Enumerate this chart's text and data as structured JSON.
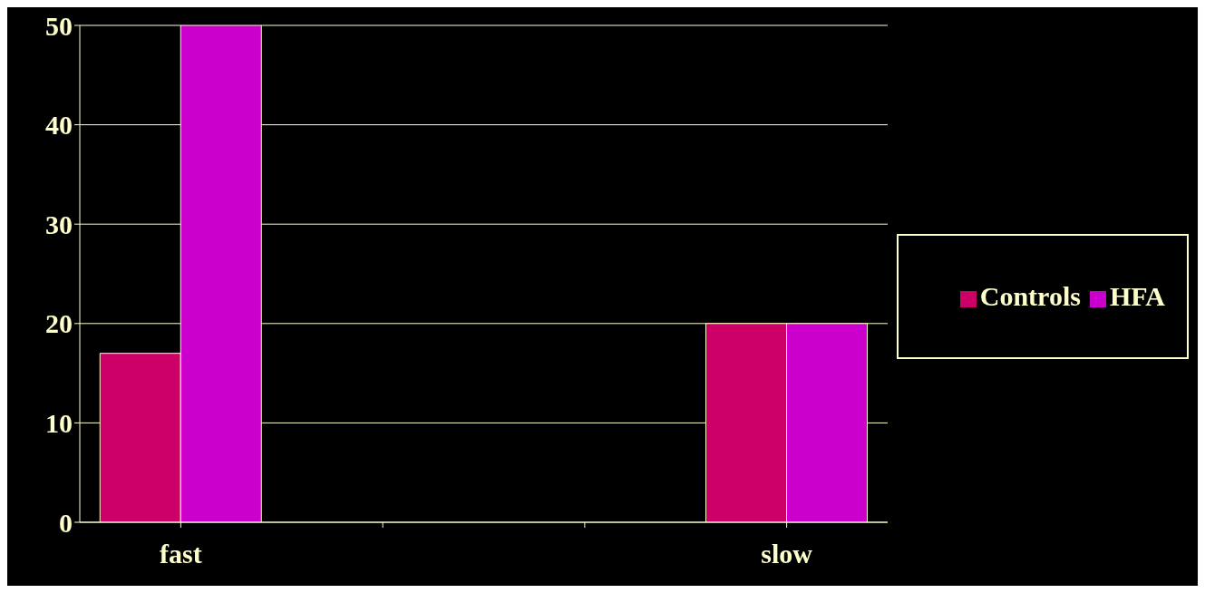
{
  "chart_data": {
    "type": "bar",
    "categories": [
      "fast",
      null,
      null,
      "slow"
    ],
    "series": [
      {
        "name": "Controls",
        "color": "#cc0066",
        "values": [
          17,
          null,
          null,
          20
        ]
      },
      {
        "name": "HFA",
        "color": "#cc00cc",
        "values": [
          50,
          null,
          null,
          20
        ]
      }
    ],
    "ylim": [
      0,
      50
    ],
    "yticks": [
      0,
      10,
      20,
      30,
      40,
      50
    ],
    "grid": "y",
    "legend": "right"
  }
}
